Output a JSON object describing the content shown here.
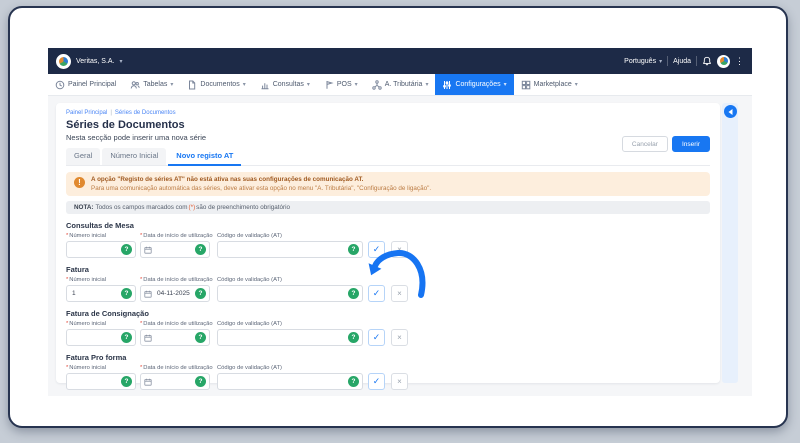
{
  "colors": {
    "accent": "#1877f2",
    "topbar_bg": "#1d2a47",
    "page_bg": "#c6cdd6",
    "content_bg": "#f5f6f8",
    "warning_bg": "#fdeedd",
    "warning_icon": "#e0892f",
    "help_green": "#27a667"
  },
  "topbar": {
    "company": "Veritas, S.A.",
    "language": "Português",
    "help_label": "Ajuda"
  },
  "nav": {
    "items": [
      {
        "label": "Painel Principal",
        "icon": "clock",
        "caret": false,
        "active": false
      },
      {
        "label": "Tabelas",
        "icon": "users",
        "caret": true,
        "active": false
      },
      {
        "label": "Documentos",
        "icon": "document",
        "caret": true,
        "active": false
      },
      {
        "label": "Consultas",
        "icon": "chart",
        "caret": true,
        "active": false
      },
      {
        "label": "POS",
        "icon": "pos",
        "caret": true,
        "active": false
      },
      {
        "label": "A. Tributária",
        "icon": "network",
        "caret": true,
        "active": false
      },
      {
        "label": "Configurações",
        "icon": "sliders",
        "caret": true,
        "active": true
      },
      {
        "label": "Marketplace",
        "icon": "grid",
        "caret": true,
        "active": false
      }
    ]
  },
  "page": {
    "breadcrumb": {
      "items": [
        "Painel Principal",
        "Séries de Documentos"
      ],
      "separator": "|"
    },
    "title": "Séries de Documentos",
    "subtitle": "Nesta secção pode inserir uma nova série",
    "tabs": [
      {
        "label": "Geral",
        "active": false
      },
      {
        "label": "Número Inicial",
        "active": false
      },
      {
        "label": "Novo registo AT",
        "active": true
      }
    ],
    "buttons": {
      "cancel": "Cancelar",
      "insert": "Inserir"
    },
    "alert": {
      "line1": "A opção \"Registo de séries AT\" não está ativa nas suas configurações de comunicação AT.",
      "line2": "Para uma comunicação automática das séries, deve ativar esta opção no menu \"A. Tributária\", \"Configuração de ligação\"."
    },
    "note": {
      "prefix": "NOTA:",
      "text_before": "Todos os campos marcados com",
      "marker": "(*)",
      "text_after": "são de preenchimento obrigatório"
    }
  },
  "form": {
    "labels": {
      "numero": "Número inicial",
      "data": "Data de início de utilização",
      "codigo": "Código de validação (AT)"
    },
    "sections": [
      {
        "title": "Consultas de Mesa",
        "numero": "",
        "data": "",
        "codigo": ""
      },
      {
        "title": "Fatura",
        "numero": "1",
        "data": "04-11-2025",
        "codigo": ""
      },
      {
        "title": "Fatura de Consignação",
        "numero": "",
        "data": "",
        "codigo": ""
      },
      {
        "title": "Fatura Pro forma",
        "numero": "",
        "data": "",
        "codigo": ""
      }
    ]
  }
}
